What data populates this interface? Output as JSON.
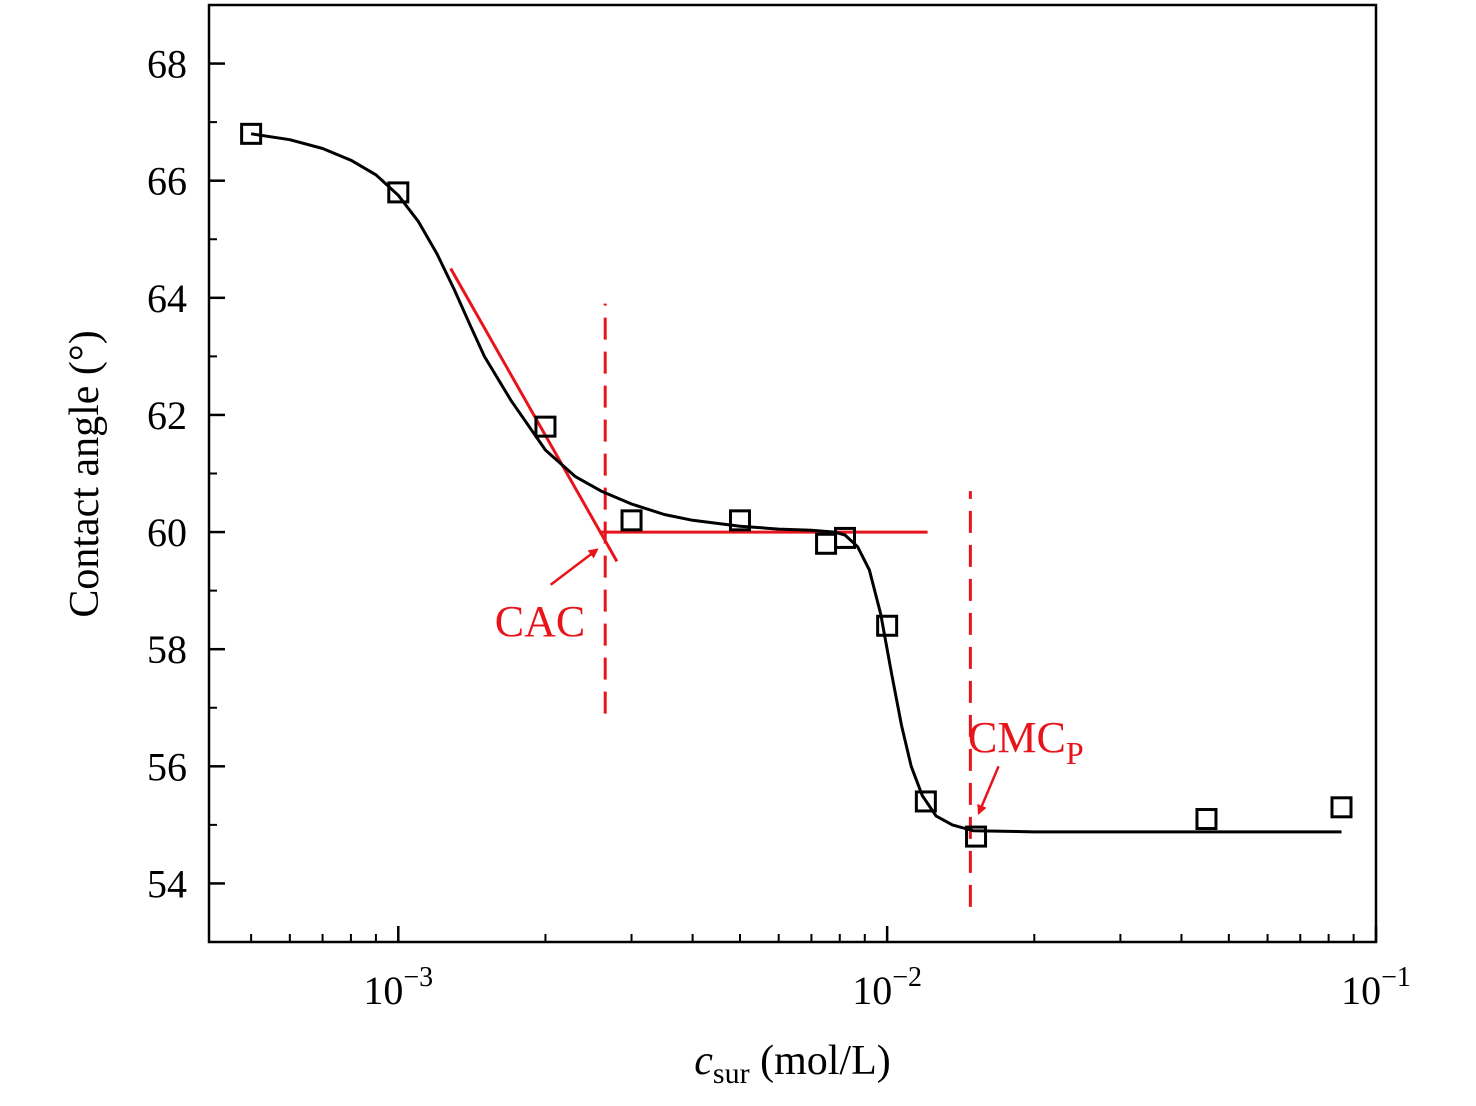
{
  "chart_data": {
    "type": "scatter",
    "xscale": "log",
    "xlim": [
      0.00041,
      0.1
    ],
    "ylim": [
      53.0,
      69.0
    ],
    "xlabel": {
      "italic": "c",
      "sub": "sur",
      "rest": " (mol/L)"
    },
    "ylabel": "Contact angle (°)",
    "x_ticks": [
      {
        "value": 0.001,
        "base": "10",
        "exp": "−3"
      },
      {
        "value": 0.01,
        "base": "10",
        "exp": "−2"
      },
      {
        "value": 0.1,
        "base": "10",
        "exp": "−1"
      }
    ],
    "y_ticks": [
      54,
      56,
      58,
      60,
      62,
      64,
      66,
      68
    ],
    "series": [
      {
        "marker": "open-square",
        "color": "#000000",
        "points": [
          {
            "x": 0.0005,
            "y": 66.8
          },
          {
            "x": 0.001,
            "y": 65.8
          },
          {
            "x": 0.002,
            "y": 61.8
          },
          {
            "x": 0.003,
            "y": 60.2
          },
          {
            "x": 0.005,
            "y": 60.2
          },
          {
            "x": 0.0075,
            "y": 59.8
          },
          {
            "x": 0.0082,
            "y": 59.9
          },
          {
            "x": 0.01,
            "y": 58.4
          },
          {
            "x": 0.012,
            "y": 55.4
          },
          {
            "x": 0.0152,
            "y": 54.8
          },
          {
            "x": 0.045,
            "y": 55.1
          },
          {
            "x": 0.085,
            "y": 55.3
          }
        ]
      }
    ],
    "fit_curve": [
      {
        "x": 0.0005,
        "y": 66.8
      },
      {
        "x": 0.0006,
        "y": 66.7
      },
      {
        "x": 0.0007,
        "y": 66.55
      },
      {
        "x": 0.0008,
        "y": 66.35
      },
      {
        "x": 0.0009,
        "y": 66.1
      },
      {
        "x": 0.001,
        "y": 65.75
      },
      {
        "x": 0.0011,
        "y": 65.3
      },
      {
        "x": 0.0012,
        "y": 64.75
      },
      {
        "x": 0.0013,
        "y": 64.15
      },
      {
        "x": 0.0014,
        "y": 63.55
      },
      {
        "x": 0.0015,
        "y": 63.0
      },
      {
        "x": 0.0017,
        "y": 62.25
      },
      {
        "x": 0.002,
        "y": 61.4
      },
      {
        "x": 0.0023,
        "y": 60.95
      },
      {
        "x": 0.0026,
        "y": 60.7
      },
      {
        "x": 0.003,
        "y": 60.48
      },
      {
        "x": 0.0035,
        "y": 60.3
      },
      {
        "x": 0.004,
        "y": 60.2
      },
      {
        "x": 0.005,
        "y": 60.1
      },
      {
        "x": 0.006,
        "y": 60.05
      },
      {
        "x": 0.007,
        "y": 60.03
      },
      {
        "x": 0.0078,
        "y": 60.0
      },
      {
        "x": 0.0082,
        "y": 59.95
      },
      {
        "x": 0.0087,
        "y": 59.75
      },
      {
        "x": 0.0092,
        "y": 59.35
      },
      {
        "x": 0.0097,
        "y": 58.6
      },
      {
        "x": 0.0102,
        "y": 57.6
      },
      {
        "x": 0.0107,
        "y": 56.7
      },
      {
        "x": 0.0112,
        "y": 56.0
      },
      {
        "x": 0.0118,
        "y": 55.5
      },
      {
        "x": 0.0126,
        "y": 55.15
      },
      {
        "x": 0.0136,
        "y": 55.0
      },
      {
        "x": 0.015,
        "y": 54.9
      },
      {
        "x": 0.02,
        "y": 54.88
      },
      {
        "x": 0.03,
        "y": 54.88
      },
      {
        "x": 0.05,
        "y": 54.88
      },
      {
        "x": 0.085,
        "y": 54.88
      }
    ],
    "annotations": {
      "lines_color": "#e8141b",
      "tangent_line": [
        {
          "x": 0.00128,
          "y": 64.5
        },
        {
          "x": 0.0028,
          "y": 59.5
        }
      ],
      "plateau_line": [
        {
          "x": 0.0026,
          "y": 60.0
        },
        {
          "x": 0.0121,
          "y": 60.0
        }
      ],
      "vline_cac": {
        "x": 0.00265,
        "y_range": [
          56.9,
          63.9
        ]
      },
      "vline_cmcp": {
        "x": 0.0148,
        "y_range": [
          53.6,
          60.7
        ]
      },
      "cac_label": {
        "text": "CAC",
        "arrow_from": {
          "x": 0.00205,
          "y": 59.1
        },
        "arrow_to": {
          "x": 0.00255,
          "y": 59.7
        }
      },
      "cmcp_label": {
        "text": "CMC",
        "sub": "P",
        "arrow_from": {
          "x": 0.0169,
          "y": 56.0
        },
        "arrow_to": {
          "x": 0.0154,
          "y": 55.2
        }
      }
    }
  }
}
